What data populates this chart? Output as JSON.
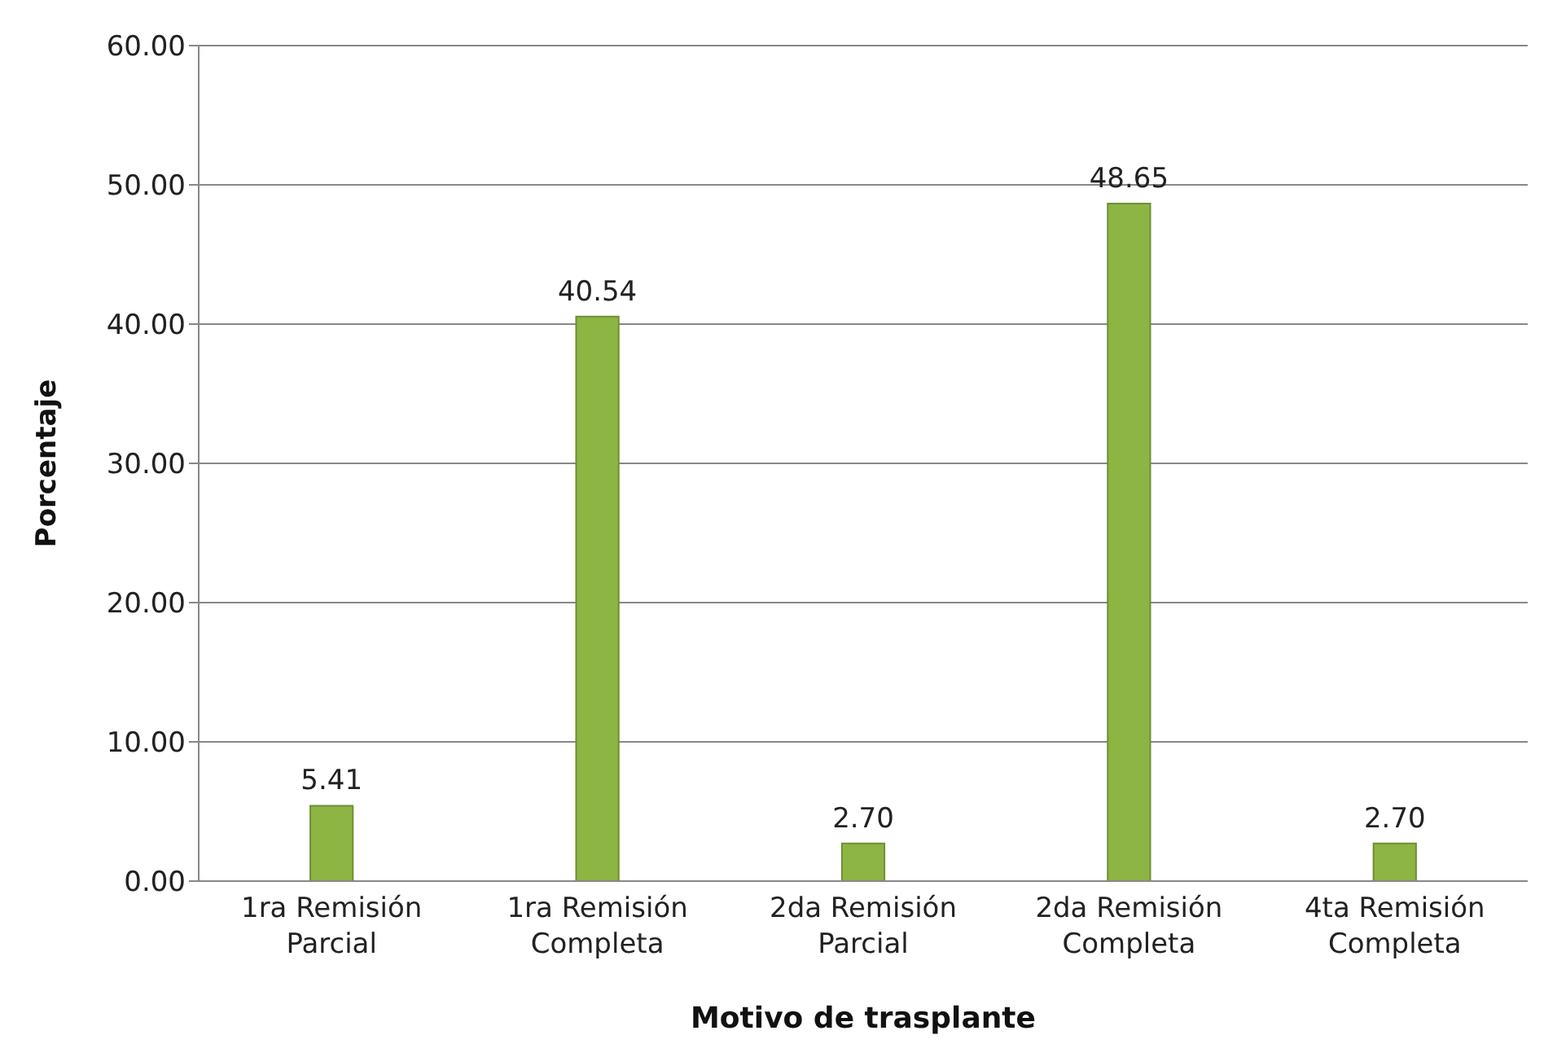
{
  "chart_data": {
    "type": "bar",
    "xlabel": "Motivo de trasplante",
    "ylabel": "Porcentaje",
    "categories": [
      "1ra Remisión Parcial",
      "1ra Remisión Completa",
      "2da Remisión Parcial",
      "2da Remisión Completa",
      "4ta Remisión Completa"
    ],
    "values": [
      5.41,
      40.54,
      2.7,
      48.65,
      2.7
    ],
    "value_labels": [
      "5.41",
      "40.54",
      "2.70",
      "48.65",
      "2.70"
    ],
    "color": "#8db543",
    "ylim": [
      0,
      60
    ],
    "yticks": [
      {
        "value": 0,
        "label": "0.00"
      },
      {
        "value": 10,
        "label": "10.00"
      },
      {
        "value": 20,
        "label": "20.00"
      },
      {
        "value": 30,
        "label": "30.00"
      },
      {
        "value": 40,
        "label": "40.00"
      },
      {
        "value": 50,
        "label": "50.00"
      },
      {
        "value": 60,
        "label": "60.00"
      }
    ],
    "grid": "y"
  }
}
